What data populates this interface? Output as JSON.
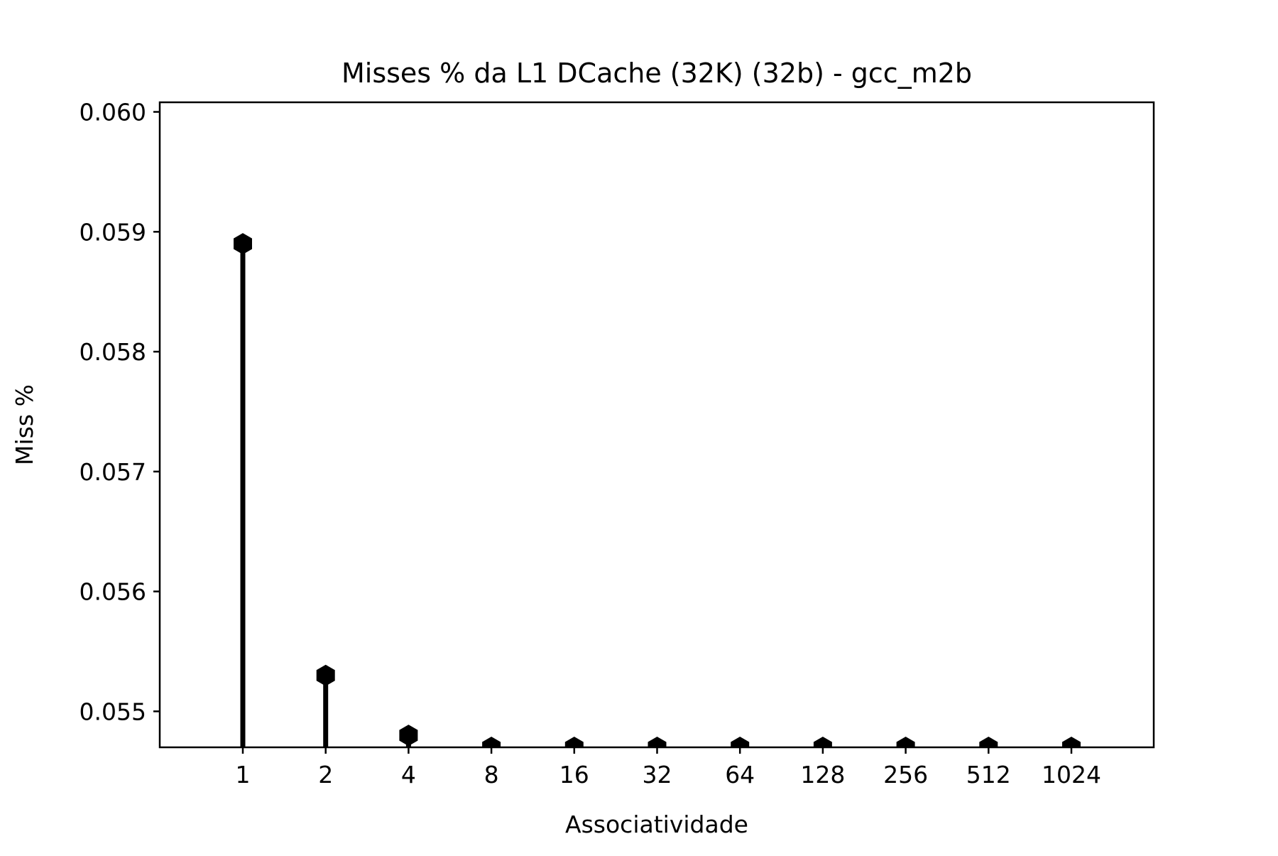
{
  "chart_data": {
    "type": "stem",
    "title": "Misses % da L1 DCache (32K) (32b) - gcc_m2b",
    "xlabel": "Associatividade",
    "ylabel": "Miss %",
    "categories": [
      "1",
      "2",
      "4",
      "8",
      "16",
      "32",
      "64",
      "128",
      "256",
      "512",
      "1024"
    ],
    "values": [
      0.0589,
      0.0553,
      0.0548,
      0.0547,
      0.0547,
      0.0547,
      0.0547,
      0.0547,
      0.0547,
      0.0547,
      0.0547
    ],
    "ylim": [
      0.0547,
      0.06008
    ],
    "yticks": [
      "0.055",
      "0.056",
      "0.057",
      "0.058",
      "0.059",
      "0.060"
    ],
    "ytick_values": [
      0.055,
      0.056,
      0.057,
      0.058,
      0.059,
      0.06
    ],
    "grid": false,
    "marker": "hexagon",
    "color": "#000000"
  }
}
